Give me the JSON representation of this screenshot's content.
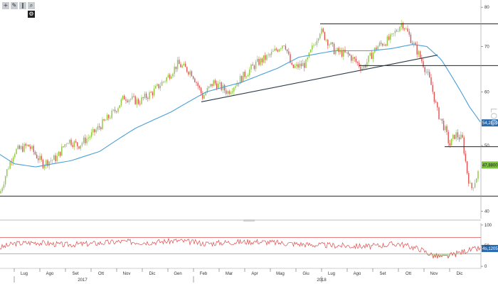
{
  "toolbar": {
    "buttons": [
      {
        "icon": "plus-icon",
        "glyph": "+"
      },
      {
        "icon": "pencil-icon",
        "glyph": "✎"
      },
      {
        "icon": "bars-icon",
        "glyph": "‖"
      },
      {
        "icon": "magnifier-icon",
        "glyph": "⌕"
      }
    ],
    "second": {
      "icon": "gear-icon",
      "glyph": "⚙"
    }
  },
  "scale_label": "LOG",
  "colors": {
    "up": "#8cc63f",
    "down": "#e05050",
    "ma": "#4a9fd8",
    "trend": "#222222",
    "rsi": "#e04a4a",
    "rsi_upper": "#e05050",
    "rsi_lower": "#6cc644",
    "price_tag": "#2a6bb0",
    "last_tag": "#7cc23f"
  },
  "chart_data": [
    {
      "type": "candlestick",
      "x_axis": {
        "months": [
          "Lug",
          "Ago",
          "Set",
          "Ott",
          "Nov",
          "Dic",
          "Gen",
          "Feb",
          "Mar",
          "Apr",
          "Mag",
          "Giu",
          "Lug",
          "Ago",
          "Set",
          "Ott",
          "Nov",
          "Dic"
        ],
        "years": [
          "2017",
          "2018"
        ]
      },
      "y_axis": {
        "scale": "log",
        "ticks": [
          40,
          50,
          60,
          70,
          80
        ],
        "ylim": [
          39,
          81
        ]
      },
      "price_anchors": [
        [
          0,
          42.5
        ],
        [
          10,
          46
        ],
        [
          20,
          49
        ],
        [
          40,
          50
        ],
        [
          60,
          47
        ],
        [
          80,
          48
        ],
        [
          95,
          51
        ],
        [
          110,
          50
        ],
        [
          130,
          52
        ],
        [
          160,
          56
        ],
        [
          175,
          59
        ],
        [
          195,
          58
        ],
        [
          215,
          60
        ],
        [
          235,
          63
        ],
        [
          250,
          66
        ],
        [
          270,
          64
        ],
        [
          285,
          59
        ],
        [
          300,
          62
        ],
        [
          320,
          60
        ],
        [
          340,
          63
        ],
        [
          360,
          66
        ],
        [
          380,
          68
        ],
        [
          400,
          71
        ],
        [
          410,
          65
        ],
        [
          430,
          66
        ],
        [
          450,
          74
        ],
        [
          470,
          69
        ],
        [
          490,
          68
        ],
        [
          510,
          65
        ],
        [
          530,
          70
        ],
        [
          550,
          72
        ],
        [
          565,
          76
        ],
        [
          580,
          71
        ],
        [
          595,
          66
        ],
        [
          605,
          62
        ],
        [
          615,
          56
        ],
        [
          625,
          53
        ],
        [
          632,
          50
        ],
        [
          640,
          52
        ],
        [
          650,
          51
        ],
        [
          656,
          46
        ],
        [
          662,
          43
        ],
        [
          670,
          45
        ],
        [
          680,
          48
        ]
      ],
      "moving_average_anchors": [
        [
          0,
          48.5
        ],
        [
          20,
          47
        ],
        [
          50,
          46.5
        ],
        [
          100,
          47.5
        ],
        [
          140,
          49
        ],
        [
          190,
          53
        ],
        [
          240,
          56
        ],
        [
          290,
          60
        ],
        [
          340,
          62
        ],
        [
          390,
          65
        ],
        [
          420,
          67.5
        ],
        [
          470,
          69
        ],
        [
          520,
          69
        ],
        [
          550,
          69.5
        ],
        [
          580,
          70.5
        ],
        [
          600,
          70
        ],
        [
          620,
          67
        ],
        [
          640,
          62
        ],
        [
          660,
          57
        ],
        [
          676,
          54
        ]
      ],
      "moving_average_last": "54,2400",
      "last_price": "47,8800",
      "horizontal_levels": [
        {
          "value": 75.6,
          "from": 450,
          "to": 700
        },
        {
          "value": 65.6,
          "from": 505,
          "to": 700
        },
        {
          "value": 49.8,
          "from": 625,
          "to": 700
        },
        {
          "value": 42.1,
          "from": 0,
          "to": 700
        }
      ],
      "trendlines": [
        {
          "from": [
            283,
            58
          ],
          "to": [
            615,
            68
          ]
        }
      ]
    },
    {
      "type": "line",
      "name": "rsi",
      "y_axis": {
        "ticks": [
          0,
          50,
          100
        ],
        "ylim": [
          -5,
          105
        ]
      },
      "upper_band": 70,
      "lower_band": 30,
      "last_value": "45,1205",
      "anchors": [
        [
          0,
          45
        ],
        [
          20,
          55
        ],
        [
          50,
          58
        ],
        [
          90,
          52
        ],
        [
          130,
          55
        ],
        [
          170,
          60
        ],
        [
          210,
          58
        ],
        [
          250,
          62
        ],
        [
          290,
          55
        ],
        [
          320,
          58
        ],
        [
          360,
          60
        ],
        [
          400,
          56
        ],
        [
          440,
          52
        ],
        [
          480,
          50
        ],
        [
          520,
          48
        ],
        [
          560,
          55
        ],
        [
          590,
          42
        ],
        [
          610,
          25
        ],
        [
          625,
          22
        ],
        [
          640,
          30
        ],
        [
          655,
          38
        ],
        [
          670,
          42
        ],
        [
          685,
          45
        ]
      ]
    }
  ]
}
